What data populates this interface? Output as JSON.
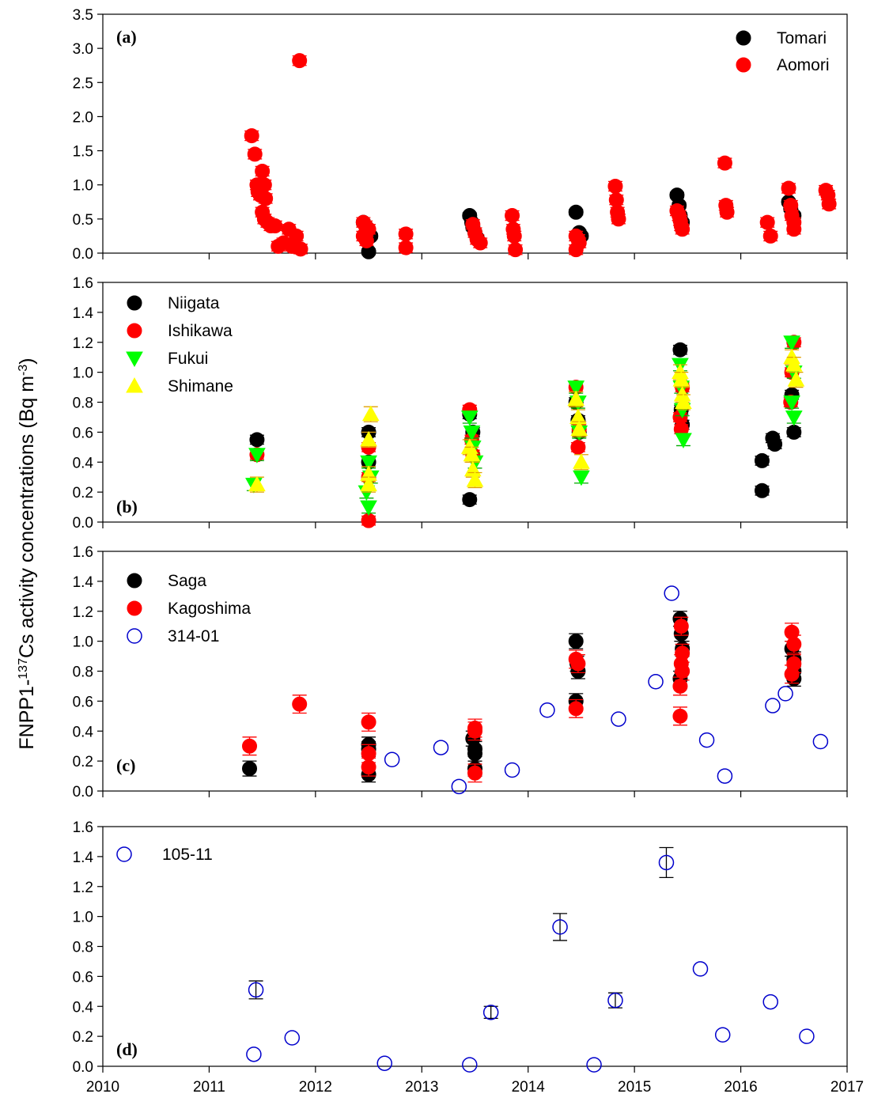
{
  "ylabel": {
    "prefix": "FNPP1-",
    "sup1": "137",
    "mid": "Cs activity concentrations (Bq m",
    "sup2": "-3",
    "suffix": ")"
  },
  "colors": {
    "black": "#000000",
    "red": "#ff0000",
    "green": "#00ff00",
    "yellow": "#ffff00",
    "blue": "#0000cc"
  },
  "x_ticks": [
    "2010",
    "2011",
    "2012",
    "2013",
    "2014",
    "2015",
    "2016",
    "2017"
  ],
  "chart_data": [
    {
      "type": "scatter",
      "panel": "(a)",
      "xlim": [
        2010,
        2017
      ],
      "ylim": [
        0,
        3.5
      ],
      "yticks": [
        "0.0",
        "0.5",
        "1.0",
        "1.5",
        "2.0",
        "2.5",
        "3.0",
        "3.5"
      ],
      "legend_position": "top-right",
      "series": [
        {
          "name": "Tomari",
          "marker": "circle",
          "color": "#000000",
          "points": [
            [
              2012.45,
              0.45
            ],
            [
              2012.48,
              0.38
            ],
            [
              2012.5,
              0.3
            ],
            [
              2012.52,
              0.25
            ],
            [
              2012.5,
              0.02
            ],
            [
              2013.45,
              0.55
            ],
            [
              2013.47,
              0.45
            ],
            [
              2013.48,
              0.38
            ],
            [
              2013.5,
              0.3
            ],
            [
              2013.52,
              0.22
            ],
            [
              2014.45,
              0.6
            ],
            [
              2014.48,
              0.3
            ],
            [
              2014.5,
              0.25
            ],
            [
              2015.4,
              0.85
            ],
            [
              2015.42,
              0.7
            ],
            [
              2015.43,
              0.55
            ],
            [
              2015.45,
              0.45
            ],
            [
              2016.45,
              0.75
            ],
            [
              2016.47,
              0.65
            ],
            [
              2016.5,
              0.55
            ]
          ],
          "err": 0.04
        },
        {
          "name": "Aomori",
          "marker": "circle",
          "color": "#ff0000",
          "points": [
            [
              2011.4,
              1.72
            ],
            [
              2011.43,
              1.45
            ],
            [
              2011.45,
              1.0
            ],
            [
              2011.46,
              0.9
            ],
            [
              2011.48,
              0.85
            ],
            [
              2011.5,
              1.2
            ],
            [
              2011.52,
              1.0
            ],
            [
              2011.53,
              0.8
            ],
            [
              2011.5,
              0.6
            ],
            [
              2011.52,
              0.5
            ],
            [
              2011.55,
              0.45
            ],
            [
              2011.58,
              0.4
            ],
            [
              2011.62,
              0.4
            ],
            [
              2011.65,
              0.1
            ],
            [
              2011.7,
              0.15
            ],
            [
              2011.75,
              0.35
            ],
            [
              2011.78,
              0.1
            ],
            [
              2011.82,
              0.25
            ],
            [
              2011.86,
              0.06
            ],
            [
              2011.85,
              2.82
            ],
            [
              2012.45,
              0.45
            ],
            [
              2012.47,
              0.4
            ],
            [
              2012.5,
              0.35
            ],
            [
              2012.45,
              0.25
            ],
            [
              2012.48,
              0.18
            ],
            [
              2012.85,
              0.28
            ],
            [
              2012.85,
              0.08
            ],
            [
              2013.48,
              0.42
            ],
            [
              2013.5,
              0.3
            ],
            [
              2013.55,
              0.15
            ],
            [
              2013.52,
              0.2
            ],
            [
              2013.85,
              0.55
            ],
            [
              2013.86,
              0.35
            ],
            [
              2013.87,
              0.25
            ],
            [
              2013.88,
              0.05
            ],
            [
              2014.45,
              0.25
            ],
            [
              2014.47,
              0.2
            ],
            [
              2014.48,
              0.15
            ],
            [
              2014.45,
              0.05
            ],
            [
              2014.82,
              0.98
            ],
            [
              2014.83,
              0.78
            ],
            [
              2014.84,
              0.6
            ],
            [
              2014.85,
              0.5
            ],
            [
              2015.4,
              0.62
            ],
            [
              2015.42,
              0.55
            ],
            [
              2015.43,
              0.48
            ],
            [
              2015.44,
              0.4
            ],
            [
              2015.45,
              0.35
            ],
            [
              2015.85,
              1.32
            ],
            [
              2015.86,
              0.7
            ],
            [
              2015.87,
              0.6
            ],
            [
              2016.25,
              0.45
            ],
            [
              2016.28,
              0.25
            ],
            [
              2016.45,
              0.95
            ],
            [
              2016.47,
              0.7
            ],
            [
              2016.48,
              0.55
            ],
            [
              2016.5,
              0.45
            ],
            [
              2016.5,
              0.35
            ],
            [
              2016.8,
              0.92
            ],
            [
              2016.82,
              0.85
            ],
            [
              2016.83,
              0.72
            ]
          ],
          "err": 0.07
        }
      ]
    },
    {
      "type": "scatter",
      "panel": "(b)",
      "xlim": [
        2010,
        2017
      ],
      "ylim": [
        0,
        1.6
      ],
      "yticks": [
        "0.0",
        "0.2",
        "0.4",
        "0.6",
        "0.8",
        "1.0",
        "1.2",
        "1.4",
        "1.6"
      ],
      "legend_position": "top-left",
      "series": [
        {
          "name": "Niigata",
          "marker": "circle",
          "color": "#000000",
          "points": [
            [
              2011.45,
              0.55
            ],
            [
              2012.5,
              0.6
            ],
            [
              2012.5,
              0.4
            ],
            [
              2013.45,
              0.15
            ],
            [
              2013.45,
              0.72
            ],
            [
              2013.48,
              0.6
            ],
            [
              2014.45,
              0.8
            ],
            [
              2014.47,
              0.68
            ],
            [
              2014.48,
              0.6
            ],
            [
              2015.43,
              1.15
            ],
            [
              2015.44,
              0.75
            ],
            [
              2015.45,
              0.65
            ],
            [
              2016.2,
              0.41
            ],
            [
              2016.2,
              0.21
            ],
            [
              2016.3,
              0.56
            ],
            [
              2016.32,
              0.52
            ],
            [
              2016.5,
              0.6
            ],
            [
              2016.48,
              0.85
            ]
          ],
          "err": 0.03
        },
        {
          "name": "Ishikawa",
          "marker": "circle",
          "color": "#ff0000",
          "points": [
            [
              2011.45,
              0.45
            ],
            [
              2012.5,
              0.5
            ],
            [
              2012.5,
              0.3
            ],
            [
              2012.5,
              0.01
            ],
            [
              2013.45,
              0.75
            ],
            [
              2013.47,
              0.55
            ],
            [
              2013.48,
              0.45
            ],
            [
              2014.45,
              0.9
            ],
            [
              2014.47,
              0.5
            ],
            [
              2014.48,
              0.62
            ],
            [
              2015.43,
              0.7
            ],
            [
              2015.44,
              0.62
            ],
            [
              2015.45,
              0.9
            ],
            [
              2016.5,
              1.2
            ],
            [
              2016.48,
              1.0
            ],
            [
              2016.47,
              0.8
            ]
          ],
          "err": 0.03
        },
        {
          "name": "Fukui",
          "marker": "triangle-down",
          "color": "#00ff00",
          "points": [
            [
              2011.45,
              0.45
            ],
            [
              2011.42,
              0.25
            ],
            [
              2012.5,
              0.4
            ],
            [
              2012.52,
              0.3
            ],
            [
              2012.48,
              0.2
            ],
            [
              2012.5,
              0.1
            ],
            [
              2013.45,
              0.7
            ],
            [
              2013.47,
              0.6
            ],
            [
              2013.48,
              0.5
            ],
            [
              2013.5,
              0.4
            ],
            [
              2014.45,
              0.9
            ],
            [
              2014.47,
              0.8
            ],
            [
              2014.48,
              0.6
            ],
            [
              2014.5,
              0.3
            ],
            [
              2015.43,
              1.05
            ],
            [
              2015.44,
              0.9
            ],
            [
              2015.45,
              0.75
            ],
            [
              2015.46,
              0.55
            ],
            [
              2016.48,
              1.2
            ],
            [
              2016.5,
              1.0
            ],
            [
              2016.48,
              0.8
            ],
            [
              2016.5,
              0.7
            ]
          ],
          "err": 0.04
        },
        {
          "name": "Shimane",
          "marker": "triangle-up",
          "color": "#ffff00",
          "points": [
            [
              2011.45,
              0.25
            ],
            [
              2012.52,
              0.72
            ],
            [
              2012.5,
              0.55
            ],
            [
              2012.5,
              0.32
            ],
            [
              2012.5,
              0.25
            ],
            [
              2013.45,
              0.5
            ],
            [
              2013.47,
              0.45
            ],
            [
              2013.48,
              0.35
            ],
            [
              2013.5,
              0.28
            ],
            [
              2014.45,
              0.82
            ],
            [
              2014.47,
              0.7
            ],
            [
              2014.48,
              0.62
            ],
            [
              2014.5,
              0.4
            ],
            [
              2015.43,
              1.0
            ],
            [
              2015.44,
              0.95
            ],
            [
              2015.45,
              0.85
            ],
            [
              2015.46,
              0.8
            ],
            [
              2016.48,
              1.1
            ],
            [
              2016.5,
              1.05
            ],
            [
              2016.52,
              0.95
            ]
          ],
          "err": 0.05
        }
      ]
    },
    {
      "type": "scatter",
      "panel": "(c)",
      "xlim": [
        2010,
        2017
      ],
      "ylim": [
        0,
        1.6
      ],
      "yticks": [
        "0.0",
        "0.2",
        "0.4",
        "0.6",
        "0.8",
        "1.0",
        "1.2",
        "1.4",
        "1.6"
      ],
      "legend_position": "top-left",
      "series": [
        {
          "name": "Saga",
          "marker": "circle",
          "color": "#000000",
          "points": [
            [
              2011.38,
              0.15
            ],
            [
              2012.5,
              0.31
            ],
            [
              2012.5,
              0.28
            ],
            [
              2012.5,
              0.11
            ],
            [
              2013.48,
              0.35
            ],
            [
              2013.5,
              0.28
            ],
            [
              2013.5,
              0.25
            ],
            [
              2013.5,
              0.15
            ],
            [
              2014.45,
              1.0
            ],
            [
              2014.46,
              0.85
            ],
            [
              2014.47,
              0.8
            ],
            [
              2014.45,
              0.6
            ],
            [
              2015.43,
              1.15
            ],
            [
              2015.44,
              1.05
            ],
            [
              2015.45,
              0.95
            ],
            [
              2015.43,
              0.75
            ],
            [
              2016.48,
              0.95
            ],
            [
              2016.5,
              0.88
            ],
            [
              2016.5,
              0.8
            ],
            [
              2016.5,
              0.75
            ]
          ],
          "err": 0.05
        },
        {
          "name": "Kagoshima",
          "marker": "circle",
          "color": "#ff0000",
          "points": [
            [
              2011.38,
              0.3
            ],
            [
              2011.85,
              0.58
            ],
            [
              2012.5,
              0.46
            ],
            [
              2012.5,
              0.25
            ],
            [
              2012.5,
              0.16
            ],
            [
              2013.5,
              0.42
            ],
            [
              2013.5,
              0.4
            ],
            [
              2013.5,
              0.12
            ],
            [
              2014.45,
              0.88
            ],
            [
              2014.47,
              0.85
            ],
            [
              2014.45,
              0.55
            ],
            [
              2015.44,
              1.1
            ],
            [
              2015.45,
              0.92
            ],
            [
              2015.44,
              0.85
            ],
            [
              2015.45,
              0.8
            ],
            [
              2015.43,
              0.7
            ],
            [
              2015.43,
              0.5
            ],
            [
              2016.48,
              1.06
            ],
            [
              2016.5,
              0.98
            ],
            [
              2016.5,
              0.85
            ],
            [
              2016.48,
              0.78
            ]
          ],
          "err": 0.06
        },
        {
          "name": "314-01",
          "marker": "circle-open",
          "color": "#0000cc",
          "points": [
            [
              2012.72,
              0.21
            ],
            [
              2013.18,
              0.29
            ],
            [
              2013.35,
              0.03
            ],
            [
              2013.85,
              0.14
            ],
            [
              2014.18,
              0.54
            ],
            [
              2014.85,
              0.48
            ],
            [
              2015.2,
              0.73
            ],
            [
              2015.35,
              1.32
            ],
            [
              2015.68,
              0.34
            ],
            [
              2015.85,
              0.1
            ],
            [
              2016.3,
              0.57
            ],
            [
              2016.42,
              0.65
            ],
            [
              2016.75,
              0.33
            ]
          ],
          "err": 0
        }
      ]
    },
    {
      "type": "scatter",
      "panel": "(d)",
      "xlim": [
        2010,
        2017
      ],
      "ylim": [
        0,
        1.6
      ],
      "yticks": [
        "0.0",
        "0.2",
        "0.4",
        "0.6",
        "0.8",
        "1.0",
        "1.2",
        "1.4",
        "1.6"
      ],
      "legend_position": "top-left",
      "series": [
        {
          "name": "105-11",
          "marker": "circle-open",
          "color": "#0000cc",
          "points": [
            [
              2011.42,
              0.08
            ],
            [
              2011.44,
              0.51
            ],
            [
              2011.78,
              0.19
            ],
            [
              2012.65,
              0.02
            ],
            [
              2013.45,
              0.01
            ],
            [
              2013.65,
              0.36
            ],
            [
              2014.3,
              0.93
            ],
            [
              2014.62,
              0.01
            ],
            [
              2014.82,
              0.44
            ],
            [
              2015.3,
              1.36
            ],
            [
              2015.62,
              0.65
            ],
            [
              2015.83,
              0.21
            ],
            [
              2016.28,
              0.43
            ],
            [
              2016.62,
              0.2
            ]
          ],
          "err_values": [
            0,
            0.06,
            0,
            0,
            0,
            0.04,
            0.09,
            0,
            0.05,
            0.1,
            0,
            0,
            0,
            0
          ]
        }
      ]
    }
  ]
}
